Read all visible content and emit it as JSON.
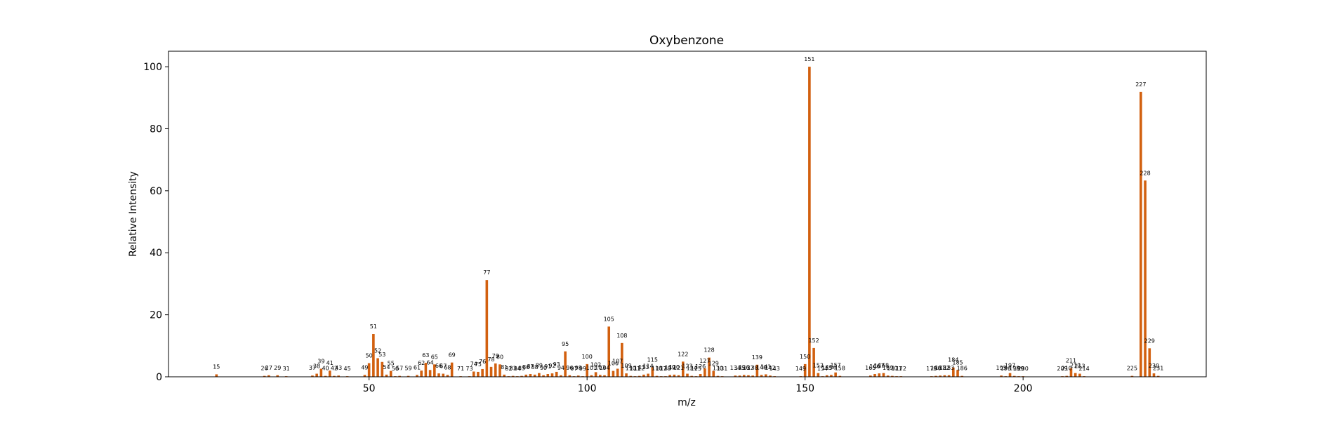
{
  "chart_data": {
    "type": "bar",
    "title": "Oxybenzone",
    "xlabel": "m/z",
    "ylabel": "Relative Intensity",
    "xlim": [
      4,
      242
    ],
    "ylim": [
      0,
      105
    ],
    "xticks": [
      50,
      100,
      150,
      200
    ],
    "yticks": [
      0,
      20,
      40,
      60,
      80,
      100
    ],
    "color": "#d2600f",
    "grid": false,
    "legend": "none",
    "peaks": [
      {
        "mz": 15,
        "intensity": 0.8,
        "label": "15"
      },
      {
        "mz": 26,
        "intensity": 0.3,
        "label": "26"
      },
      {
        "mz": 27,
        "intensity": 0.5,
        "label": "27"
      },
      {
        "mz": 29,
        "intensity": 0.5,
        "label": "29"
      },
      {
        "mz": 31,
        "intensity": 0.2,
        "label": "31"
      },
      {
        "mz": 37,
        "intensity": 0.4,
        "label": "37"
      },
      {
        "mz": 38,
        "intensity": 1.0,
        "label": "38"
      },
      {
        "mz": 39,
        "intensity": 2.6,
        "label": "39"
      },
      {
        "mz": 40,
        "intensity": 0.3,
        "label": "40"
      },
      {
        "mz": 41,
        "intensity": 2.0,
        "label": "41"
      },
      {
        "mz": 42,
        "intensity": 0.3,
        "label": "42"
      },
      {
        "mz": 43,
        "intensity": 0.4,
        "label": "43"
      },
      {
        "mz": 45,
        "intensity": 0.2,
        "label": "45"
      },
      {
        "mz": 49,
        "intensity": 0.6,
        "label": "49"
      },
      {
        "mz": 50,
        "intensity": 4.4,
        "label": "50"
      },
      {
        "mz": 51,
        "intensity": 13.8,
        "label": "51"
      },
      {
        "mz": 52,
        "intensity": 6.0,
        "label": "52"
      },
      {
        "mz": 53,
        "intensity": 4.8,
        "label": "53"
      },
      {
        "mz": 54,
        "intensity": 0.7,
        "label": "54"
      },
      {
        "mz": 55,
        "intensity": 1.9,
        "label": "55"
      },
      {
        "mz": 56,
        "intensity": 0.2,
        "label": "56"
      },
      {
        "mz": 57,
        "intensity": 0.3,
        "label": "57"
      },
      {
        "mz": 59,
        "intensity": 0.3,
        "label": "59"
      },
      {
        "mz": 61,
        "intensity": 0.6,
        "label": "61"
      },
      {
        "mz": 62,
        "intensity": 2.0,
        "label": "62"
      },
      {
        "mz": 63,
        "intensity": 4.5,
        "label": "63"
      },
      {
        "mz": 64,
        "intensity": 2.2,
        "label": "64"
      },
      {
        "mz": 65,
        "intensity": 4.0,
        "label": "65"
      },
      {
        "mz": 66,
        "intensity": 1.1,
        "label": "66"
      },
      {
        "mz": 67,
        "intensity": 1.0,
        "label": "67"
      },
      {
        "mz": 68,
        "intensity": 0.6,
        "label": "68"
      },
      {
        "mz": 69,
        "intensity": 4.6,
        "label": "69"
      },
      {
        "mz": 71,
        "intensity": 0.2,
        "label": "71"
      },
      {
        "mz": 73,
        "intensity": 0.2,
        "label": "73"
      },
      {
        "mz": 74,
        "intensity": 1.7,
        "label": "74"
      },
      {
        "mz": 75,
        "intensity": 1.6,
        "label": "75"
      },
      {
        "mz": 76,
        "intensity": 2.5,
        "label": "76"
      },
      {
        "mz": 77,
        "intensity": 31.2,
        "label": "77"
      },
      {
        "mz": 78,
        "intensity": 3.2,
        "label": "78"
      },
      {
        "mz": 79,
        "intensity": 4.3,
        "label": "79"
      },
      {
        "mz": 80,
        "intensity": 4.0,
        "label": "80"
      },
      {
        "mz": 81,
        "intensity": 0.7,
        "label": "81"
      },
      {
        "mz": 82,
        "intensity": 0.2,
        "label": "82"
      },
      {
        "mz": 83,
        "intensity": 0.3,
        "label": "83"
      },
      {
        "mz": 84,
        "intensity": 0.2,
        "label": "84"
      },
      {
        "mz": 85,
        "intensity": 0.3,
        "label": "85"
      },
      {
        "mz": 86,
        "intensity": 0.7,
        "label": "86"
      },
      {
        "mz": 87,
        "intensity": 0.9,
        "label": "87"
      },
      {
        "mz": 88,
        "intensity": 0.7,
        "label": "88"
      },
      {
        "mz": 89,
        "intensity": 1.2,
        "label": "89"
      },
      {
        "mz": 90,
        "intensity": 0.5,
        "label": "90"
      },
      {
        "mz": 91,
        "intensity": 0.9,
        "label": "91"
      },
      {
        "mz": 92,
        "intensity": 1.1,
        "label": "92"
      },
      {
        "mz": 93,
        "intensity": 1.6,
        "label": "93"
      },
      {
        "mz": 94,
        "intensity": 0.5,
        "label": "94"
      },
      {
        "mz": 95,
        "intensity": 8.2,
        "label": "95"
      },
      {
        "mz": 96,
        "intensity": 0.5,
        "label": "96"
      },
      {
        "mz": 97,
        "intensity": 0.2,
        "label": "97"
      },
      {
        "mz": 98,
        "intensity": 0.4,
        "label": "98"
      },
      {
        "mz": 99,
        "intensity": 0.2,
        "label": "99"
      },
      {
        "mz": 100,
        "intensity": 4.1,
        "label": "100"
      },
      {
        "mz": 101,
        "intensity": 0.5,
        "label": "101"
      },
      {
        "mz": 102,
        "intensity": 1.5,
        "label": "102"
      },
      {
        "mz": 103,
        "intensity": 0.6,
        "label": "103"
      },
      {
        "mz": 104,
        "intensity": 0.5,
        "label": "104"
      },
      {
        "mz": 105,
        "intensity": 16.2,
        "label": "105"
      },
      {
        "mz": 106,
        "intensity": 1.9,
        "label": "106"
      },
      {
        "mz": 107,
        "intensity": 2.6,
        "label": "107"
      },
      {
        "mz": 108,
        "intensity": 10.9,
        "label": "108"
      },
      {
        "mz": 109,
        "intensity": 1.1,
        "label": "109"
      },
      {
        "mz": 110,
        "intensity": 0.3,
        "label": "110"
      },
      {
        "mz": 111,
        "intensity": 0.2,
        "label": "111"
      },
      {
        "mz": 112,
        "intensity": 0.3,
        "label": "112"
      },
      {
        "mz": 113,
        "intensity": 0.7,
        "label": "113"
      },
      {
        "mz": 114,
        "intensity": 1.0,
        "label": "114"
      },
      {
        "mz": 115,
        "intensity": 3.1,
        "label": "115"
      },
      {
        "mz": 116,
        "intensity": 0.3,
        "label": "116"
      },
      {
        "mz": 117,
        "intensity": 0.2,
        "label": "117"
      },
      {
        "mz": 118,
        "intensity": 0.2,
        "label": "118"
      },
      {
        "mz": 119,
        "intensity": 0.6,
        "label": "119"
      },
      {
        "mz": 120,
        "intensity": 0.7,
        "label": "120"
      },
      {
        "mz": 121,
        "intensity": 0.5,
        "label": "121"
      },
      {
        "mz": 122,
        "intensity": 4.9,
        "label": "122"
      },
      {
        "mz": 123,
        "intensity": 1.0,
        "label": "123"
      },
      {
        "mz": 124,
        "intensity": 0.3,
        "label": "124"
      },
      {
        "mz": 125,
        "intensity": 0.2,
        "label": "125"
      },
      {
        "mz": 126,
        "intensity": 0.9,
        "label": "126"
      },
      {
        "mz": 127,
        "intensity": 2.7,
        "label": "127"
      },
      {
        "mz": 128,
        "intensity": 6.2,
        "label": "128"
      },
      {
        "mz": 129,
        "intensity": 1.9,
        "label": "129"
      },
      {
        "mz": 130,
        "intensity": 0.3,
        "label": "130"
      },
      {
        "mz": 131,
        "intensity": 0.2,
        "label": "131"
      },
      {
        "mz": 134,
        "intensity": 0.4,
        "label": "134"
      },
      {
        "mz": 135,
        "intensity": 0.4,
        "label": "135"
      },
      {
        "mz": 136,
        "intensity": 0.6,
        "label": "136"
      },
      {
        "mz": 137,
        "intensity": 0.5,
        "label": "137"
      },
      {
        "mz": 138,
        "intensity": 0.4,
        "label": "138"
      },
      {
        "mz": 139,
        "intensity": 3.9,
        "label": "139"
      },
      {
        "mz": 140,
        "intensity": 0.6,
        "label": "140"
      },
      {
        "mz": 141,
        "intensity": 0.8,
        "label": "141"
      },
      {
        "mz": 142,
        "intensity": 0.4,
        "label": "142"
      },
      {
        "mz": 143,
        "intensity": 0.2,
        "label": "143"
      },
      {
        "mz": 149,
        "intensity": 0.2,
        "label": "149"
      },
      {
        "mz": 150,
        "intensity": 4.1,
        "label": "150"
      },
      {
        "mz": 151,
        "intensity": 100.0,
        "label": "151"
      },
      {
        "mz": 152,
        "intensity": 9.3,
        "label": "152"
      },
      {
        "mz": 153,
        "intensity": 1.2,
        "label": "153"
      },
      {
        "mz": 154,
        "intensity": 0.2,
        "label": "154"
      },
      {
        "mz": 155,
        "intensity": 0.5,
        "label": "155"
      },
      {
        "mz": 156,
        "intensity": 0.6,
        "label": "156"
      },
      {
        "mz": 157,
        "intensity": 1.4,
        "label": "157"
      },
      {
        "mz": 158,
        "intensity": 0.3,
        "label": "158"
      },
      {
        "mz": 165,
        "intensity": 0.4,
        "label": "165"
      },
      {
        "mz": 166,
        "intensity": 0.9,
        "label": "166"
      },
      {
        "mz": 167,
        "intensity": 1.1,
        "label": "167"
      },
      {
        "mz": 168,
        "intensity": 1.2,
        "label": "168"
      },
      {
        "mz": 169,
        "intensity": 0.4,
        "label": "169"
      },
      {
        "mz": 170,
        "intensity": 0.3,
        "label": "170"
      },
      {
        "mz": 171,
        "intensity": 0.2,
        "label": "171"
      },
      {
        "mz": 172,
        "intensity": 0.2,
        "label": "172"
      },
      {
        "mz": 179,
        "intensity": 0.2,
        "label": "179"
      },
      {
        "mz": 180,
        "intensity": 0.3,
        "label": "180"
      },
      {
        "mz": 181,
        "intensity": 0.4,
        "label": "181"
      },
      {
        "mz": 182,
        "intensity": 0.5,
        "label": "182"
      },
      {
        "mz": 183,
        "intensity": 0.5,
        "label": "183"
      },
      {
        "mz": 184,
        "intensity": 3.0,
        "label": "184"
      },
      {
        "mz": 185,
        "intensity": 2.2,
        "label": "185"
      },
      {
        "mz": 186,
        "intensity": 0.3,
        "label": "186"
      },
      {
        "mz": 195,
        "intensity": 0.4,
        "label": "195"
      },
      {
        "mz": 196,
        "intensity": 0.2,
        "label": "196"
      },
      {
        "mz": 197,
        "intensity": 1.2,
        "label": "197"
      },
      {
        "mz": 198,
        "intensity": 0.3,
        "label": "198"
      },
      {
        "mz": 199,
        "intensity": 0.2,
        "label": "199"
      },
      {
        "mz": 200,
        "intensity": 0.2,
        "label": "200"
      },
      {
        "mz": 209,
        "intensity": 0.2,
        "label": "209"
      },
      {
        "mz": 210,
        "intensity": 0.3,
        "label": "210"
      },
      {
        "mz": 211,
        "intensity": 2.8,
        "label": "211"
      },
      {
        "mz": 212,
        "intensity": 1.2,
        "label": "212"
      },
      {
        "mz": 213,
        "intensity": 1.0,
        "label": "213"
      },
      {
        "mz": 214,
        "intensity": 0.2,
        "label": "214"
      },
      {
        "mz": 225,
        "intensity": 0.3,
        "label": "225"
      },
      {
        "mz": 227,
        "intensity": 91.9,
        "label": "227"
      },
      {
        "mz": 228,
        "intensity": 63.3,
        "label": "228"
      },
      {
        "mz": 229,
        "intensity": 9.2,
        "label": "229"
      },
      {
        "mz": 230,
        "intensity": 1.1,
        "label": "230"
      },
      {
        "mz": 231,
        "intensity": 0.3,
        "label": "231"
      }
    ]
  }
}
